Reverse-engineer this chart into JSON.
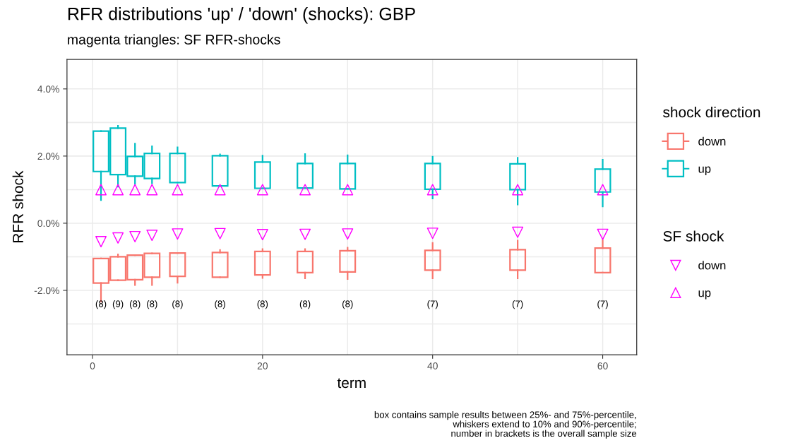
{
  "chart_data": {
    "type": "box",
    "title": "RFR distributions 'up' / 'down' (shocks): GBP",
    "subtitle": "magenta triangles: SF RFR-shocks",
    "xlabel": "term",
    "ylabel": "RFR shock",
    "legend_title": [
      "shock direction",
      "SF shock"
    ],
    "x": [
      1,
      3,
      5,
      7,
      10,
      15,
      20,
      25,
      30,
      40,
      50,
      60
    ],
    "series": [
      {
        "name": "down",
        "color": "#f8766d",
        "boxes": [
          {
            "low": -2.33,
            "q1": -1.78,
            "q3": -1.05,
            "high": -1.05
          },
          {
            "low": -1.7,
            "q1": -1.7,
            "q3": -1.0,
            "high": -0.93
          },
          {
            "low": -1.84,
            "q1": -1.68,
            "q3": -0.95,
            "high": -0.95
          },
          {
            "low": -1.84,
            "q1": -1.61,
            "q3": -0.9,
            "high": -0.9
          },
          {
            "low": -1.77,
            "q1": -1.58,
            "q3": -0.89,
            "high": -0.89
          },
          {
            "low": -1.61,
            "q1": -1.61,
            "q3": -0.87,
            "high": -0.8
          },
          {
            "low": -1.63,
            "q1": -1.54,
            "q3": -0.84,
            "high": -0.77
          },
          {
            "low": -1.64,
            "q1": -1.47,
            "q3": -0.84,
            "high": -0.77
          },
          {
            "low": -1.66,
            "q1": -1.45,
            "q3": -0.82,
            "high": -0.73
          },
          {
            "low": -1.64,
            "q1": -1.4,
            "q3": -0.81,
            "high": -0.59
          },
          {
            "low": -1.64,
            "q1": -1.4,
            "q3": -0.79,
            "high": -0.52
          },
          {
            "low": -1.47,
            "q1": -1.47,
            "q3": -0.74,
            "high": -0.51
          }
        ]
      },
      {
        "name": "up",
        "color": "#00bfc4",
        "boxes": [
          {
            "low": 0.69,
            "q1": 1.54,
            "q3": 2.74,
            "high": 2.74
          },
          {
            "low": 1.09,
            "q1": 1.45,
            "q3": 2.83,
            "high": 2.9
          },
          {
            "low": 1.18,
            "q1": 1.4,
            "q3": 1.99,
            "high": 2.37
          },
          {
            "low": 1.19,
            "q1": 1.33,
            "q3": 2.08,
            "high": 2.29
          },
          {
            "low": 1.21,
            "q1": 1.21,
            "q3": 2.08,
            "high": 2.26
          },
          {
            "low": 1.11,
            "q1": 1.11,
            "q3": 2.01,
            "high": 2.05
          },
          {
            "low": 1.04,
            "q1": 1.04,
            "q3": 1.82,
            "high": 2.01
          },
          {
            "low": 1.05,
            "q1": 1.05,
            "q3": 1.78,
            "high": 2.06
          },
          {
            "low": 1.02,
            "q1": 1.02,
            "q3": 1.78,
            "high": 2.02
          },
          {
            "low": 0.74,
            "q1": 1.01,
            "q3": 1.78,
            "high": 1.98
          },
          {
            "low": 0.56,
            "q1": 1.0,
            "q3": 1.77,
            "high": 1.95
          },
          {
            "low": 0.5,
            "q1": 0.93,
            "q3": 1.61,
            "high": 1.89
          }
        ]
      },
      {
        "name": "down",
        "type": "scatter",
        "marker": "triangle_down",
        "color": "#ff00ff",
        "values": [
          -0.55,
          -0.44,
          -0.4,
          -0.36,
          -0.32,
          -0.31,
          -0.34,
          -0.33,
          -0.32,
          -0.3,
          -0.27,
          -0.33
        ]
      },
      {
        "name": "up",
        "type": "scatter",
        "marker": "triangle",
        "color": "#ff00ff",
        "values": [
          1.0,
          1.0,
          1.0,
          1.0,
          1.0,
          1.0,
          1.0,
          1.0,
          1.0,
          1.0,
          1.0,
          1.0
        ]
      }
    ],
    "xlim": [
      -3,
      64
    ],
    "xticks": [
      0,
      20,
      40,
      60,
      {
        "value": 10,
        "label": null
      },
      {
        "value": 30,
        "label": null
      },
      {
        "value": 50,
        "label": null
      }
    ],
    "ylim": [
      -3.92,
      4.88
    ],
    "yticks": [
      {
        "value": -2,
        "label": "-2.0%"
      },
      {
        "value": 0,
        "label": "0.0%"
      },
      {
        "value": 2,
        "label": "2.0%"
      },
      {
        "value": 4,
        "label": "4.0%"
      },
      {
        "value": -3,
        "label": null
      },
      {
        "value": -1,
        "label": null
      },
      {
        "value": 1,
        "label": null
      },
      {
        "value": 3,
        "label": null
      }
    ],
    "grid": true,
    "legend": "right",
    "annotations": [
      "(8)",
      "(9)",
      "(8)",
      "(8)",
      "(8)",
      "(8)",
      "(8)",
      "(8)",
      "(8)",
      "(7)",
      "(7)",
      "(7)",
      "box contains sample results between 25%- and 75%-percentile,\nwhiskers extend to 10% and 90%-percentile;\nnumber in brackets is the overall sample size"
    ]
  }
}
